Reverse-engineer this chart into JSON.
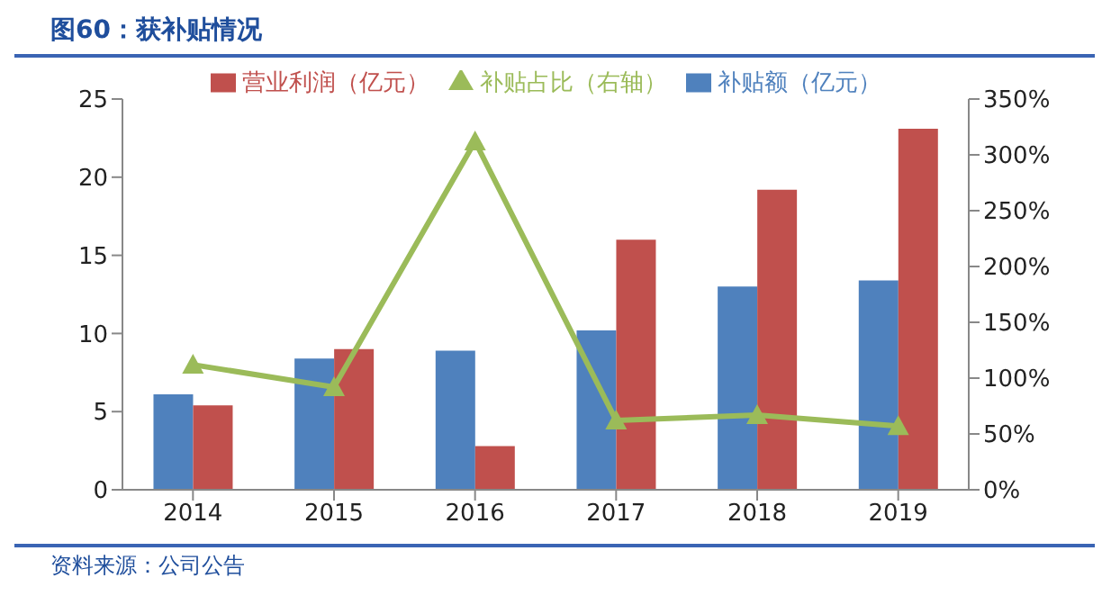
{
  "chart_data": {
    "type": "bar",
    "title": "图60：获补贴情况",
    "categories": [
      "2014",
      "2015",
      "2016",
      "2017",
      "2018",
      "2019"
    ],
    "series": [
      {
        "name": "补贴额（亿元）",
        "color": "#4f81bd",
        "values": [
          6.1,
          8.4,
          8.9,
          10.2,
          13.0,
          13.4
        ]
      },
      {
        "name": "营业利润（亿元）",
        "color": "#c0504d",
        "values": [
          5.4,
          9.0,
          2.8,
          16.0,
          19.2,
          23.1
        ]
      },
      {
        "name": "补贴占比（右轴）",
        "type": "line",
        "axis": "y2",
        "color": "#9bbb59",
        "marker": "triangle",
        "values": [
          112,
          92,
          312,
          62,
          67,
          57
        ]
      }
    ],
    "ylim": [
      0,
      25
    ],
    "yticks": [
      0,
      5,
      10,
      15,
      20,
      25
    ],
    "y2lim": [
      0,
      350
    ],
    "y2ticks": [
      {
        "value": 0,
        "label": "0%"
      },
      {
        "value": 50,
        "label": "50%"
      },
      {
        "value": 100,
        "label": "100%"
      },
      {
        "value": 150,
        "label": "150%"
      },
      {
        "value": 200,
        "label": "200%"
      },
      {
        "value": 250,
        "label": "250%"
      },
      {
        "value": 300,
        "label": "300%"
      },
      {
        "value": 350,
        "label": "350%"
      }
    ],
    "grid": false,
    "legend": "top",
    "annotations": [
      "资料来源：公司公告"
    ]
  }
}
